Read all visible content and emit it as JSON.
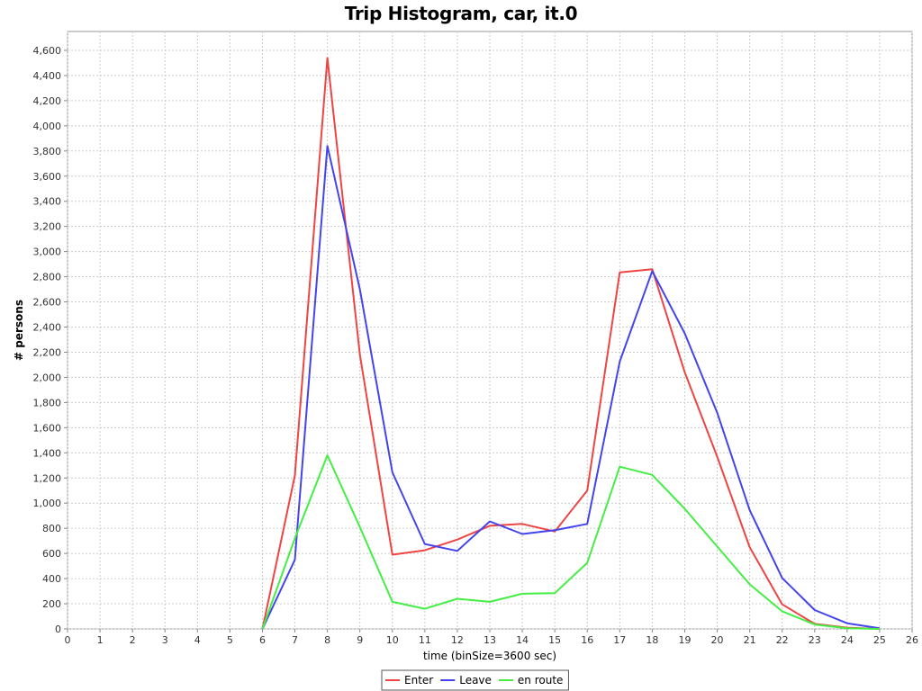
{
  "chart_data": {
    "type": "line",
    "title": "Trip Histogram, car, it.0",
    "xlabel": "time (binSize=3600 sec)",
    "ylabel": "# persons",
    "xlim": [
      0,
      26
    ],
    "ylim": [
      0,
      4750
    ],
    "x_ticks": [
      0,
      1,
      2,
      3,
      4,
      5,
      6,
      7,
      8,
      9,
      10,
      11,
      12,
      13,
      14,
      15,
      16,
      17,
      18,
      19,
      20,
      21,
      22,
      23,
      24,
      25,
      26
    ],
    "y_ticks": [
      0,
      200,
      400,
      600,
      800,
      1000,
      1200,
      1400,
      1600,
      1800,
      2000,
      2200,
      2400,
      2600,
      2800,
      3000,
      3200,
      3400,
      3600,
      3800,
      4000,
      4200,
      4400,
      4600
    ],
    "grid": true,
    "legend": "bottom",
    "x": [
      6,
      7,
      8,
      9,
      10,
      11,
      12,
      13,
      14,
      15,
      16,
      17,
      18,
      19,
      20,
      21,
      22,
      23,
      24,
      25
    ],
    "series": [
      {
        "name": "Enter",
        "color": "#ee4444",
        "values": [
          0,
          1220,
          4540,
          2180,
          590,
          625,
          710,
          820,
          835,
          775,
          1100,
          2835,
          2860,
          2040,
          1370,
          650,
          195,
          40,
          10,
          0
        ]
      },
      {
        "name": "Leave",
        "color": "#4444ee",
        "values": [
          0,
          550,
          3840,
          2700,
          1245,
          675,
          620,
          855,
          755,
          785,
          835,
          2125,
          2845,
          2350,
          1720,
          945,
          405,
          150,
          45,
          5
        ]
      },
      {
        "name": "en route",
        "color": "#44ee44",
        "values": [
          0,
          720,
          1380,
          810,
          215,
          160,
          240,
          215,
          280,
          285,
          525,
          1290,
          1225,
          955,
          655,
          355,
          140,
          35,
          5,
          0
        ]
      }
    ]
  }
}
